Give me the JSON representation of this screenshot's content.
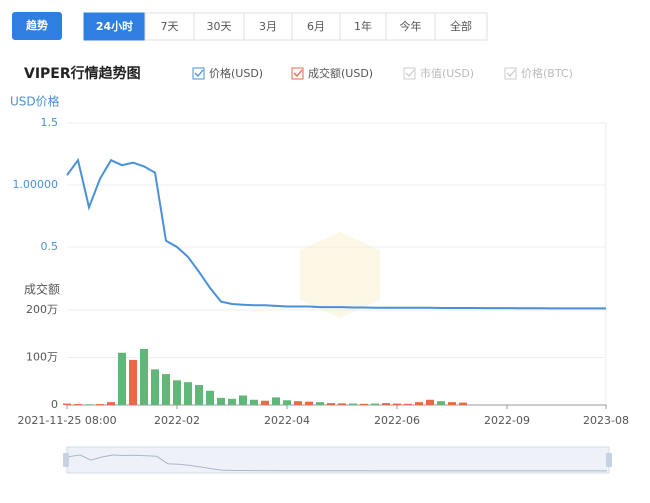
{
  "ui": {
    "tabs": [
      "趋势"
    ],
    "ranges": [
      "24小时",
      "7天",
      "30天",
      "3月",
      "6月",
      "1年",
      "今年",
      "全部"
    ],
    "active_range": 0
  },
  "chart_data": {
    "type": "line-bar",
    "title": "VIPER行情趋势图",
    "y_label": "USD价格",
    "y2_label": "成交额",
    "categories": [
      "2021-11-25 08:00",
      null,
      null,
      null,
      null,
      null,
      null,
      null,
      null,
      null,
      "2022-02",
      null,
      null,
      null,
      null,
      null,
      null,
      null,
      null,
      null,
      "2022-04",
      null,
      null,
      null,
      null,
      null,
      null,
      null,
      null,
      null,
      "2022-06",
      null,
      null,
      null,
      null,
      null,
      null,
      null,
      null,
      null,
      "2022-09",
      null,
      null,
      null,
      null,
      null,
      null,
      null,
      null,
      "2023-08"
    ],
    "ylim": [
      0,
      1.5
    ],
    "yticks": [
      {
        "value": 1.5,
        "label": "1.5"
      },
      {
        "value": 1,
        "label": "1.00000"
      },
      {
        "value": 0.5,
        "label": "0.5"
      }
    ],
    "y2lim": [
      0,
      2000000
    ],
    "y2ticks": [
      {
        "value": 2000000,
        "label": "200万"
      },
      {
        "value": 1000000,
        "label": "100万"
      },
      0
    ],
    "series": [
      {
        "name": "价格(USD)",
        "color": "#4a90d9",
        "values": [
          1.08,
          1.2,
          0.82,
          1.05,
          1.2,
          1.16,
          1.18,
          1.15,
          1.1,
          0.55,
          0.5,
          0.42,
          0.3,
          0.17,
          0.06,
          0.04,
          0.035,
          0.03,
          0.03,
          0.025,
          0.02,
          0.02,
          0.02,
          0.015,
          0.015,
          0.015,
          0.012,
          0.012,
          0.01,
          0.01,
          0.01,
          0.01,
          0.01,
          0.01,
          0.008,
          0.008,
          0.008,
          0.008,
          0.007,
          0.007,
          0.007,
          0.006,
          0.006,
          0.006,
          0.005,
          0.005,
          0.005,
          0.005,
          0.005,
          0.005
        ]
      },
      {
        "name": "成交额(USD)",
        "color": "#e8694a",
        "down_color": "#5fb878",
        "axis": "y2",
        "values": [
          30000,
          20000,
          15000,
          20000,
          60000,
          1100000,
          950000,
          1180000,
          750000,
          650000,
          520000,
          480000,
          420000,
          300000,
          150000,
          130000,
          200000,
          110000,
          90000,
          160000,
          100000,
          80000,
          70000,
          60000,
          40000,
          35000,
          30000,
          25000,
          30000,
          40000,
          30000,
          25000,
          60000,
          110000,
          80000,
          60000,
          50000,
          null,
          null,
          null,
          null,
          null,
          null,
          null,
          null,
          null,
          null,
          null,
          null,
          null
        ]
      }
    ],
    "legend_hidden": [
      {
        "name": "市值(USD)"
      },
      {
        "name": "价格(BTC)"
      }
    ],
    "grid": true
  }
}
